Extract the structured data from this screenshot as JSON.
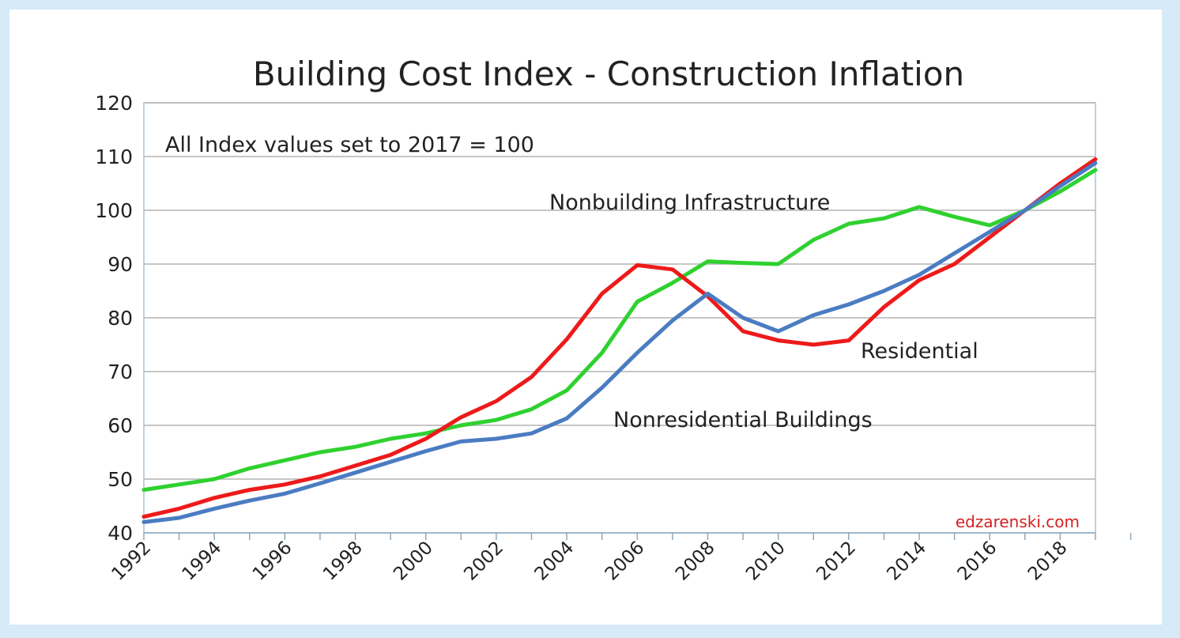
{
  "chart_data": {
    "type": "line",
    "title": "Building Cost Index  - Construction Inflation",
    "subtitle": "All Index values set to 2017 = 100",
    "credit": "edzarenski.com",
    "xlabel": "",
    "ylabel": "",
    "xlim": [
      1992,
      2019
    ],
    "ylim": [
      40,
      120
    ],
    "x_tick_labels": [
      "1992",
      "1994",
      "1996",
      "1998",
      "2000",
      "2002",
      "2004",
      "2006",
      "2008",
      "2010",
      "2012",
      "2014",
      "2016",
      "2018"
    ],
    "y_tick_labels": [
      "40",
      "50",
      "60",
      "70",
      "80",
      "90",
      "100",
      "110",
      "120"
    ],
    "grid": "horizontal",
    "x": [
      1992,
      1993,
      1994,
      1995,
      1996,
      1997,
      1998,
      1999,
      2000,
      2001,
      2002,
      2003,
      2004,
      2005,
      2006,
      2007,
      2008,
      2009,
      2010,
      2011,
      2012,
      2013,
      2014,
      2015,
      2016,
      2017,
      2018,
      2019
    ],
    "series": [
      {
        "name": "Nonbuilding Infrastructure",
        "color": "#2fd12f",
        "values": [
          48,
          49,
          50,
          52,
          53.5,
          55,
          56,
          57.5,
          58.5,
          60,
          61,
          63,
          66.5,
          73.5,
          83,
          86.5,
          90.5,
          90.2,
          90,
          94.5,
          97.5,
          98.5,
          100.6,
          98.8,
          97.2,
          100,
          103.5,
          107.5
        ]
      },
      {
        "name": "Residential",
        "color": "#ee1a1a",
        "values": [
          43,
          44.5,
          46.5,
          48,
          49,
          50.5,
          52.5,
          54.5,
          57.5,
          61.5,
          64.5,
          69,
          76,
          84.5,
          89.8,
          89,
          84,
          77.5,
          75.8,
          75,
          75.8,
          82,
          87,
          90,
          95,
          100,
          105,
          109.5
        ]
      },
      {
        "name": "Nonresidential Buildings",
        "color": "#4a7cc2",
        "values": [
          42,
          42.8,
          44.5,
          46,
          47.3,
          49.2,
          51.2,
          53.2,
          55.2,
          57,
          57.5,
          58.5,
          61.3,
          67,
          73.5,
          79.5,
          84.5,
          80,
          77.5,
          80.5,
          82.5,
          85,
          88,
          92,
          96,
          100,
          104.5,
          108.8
        ]
      }
    ]
  }
}
